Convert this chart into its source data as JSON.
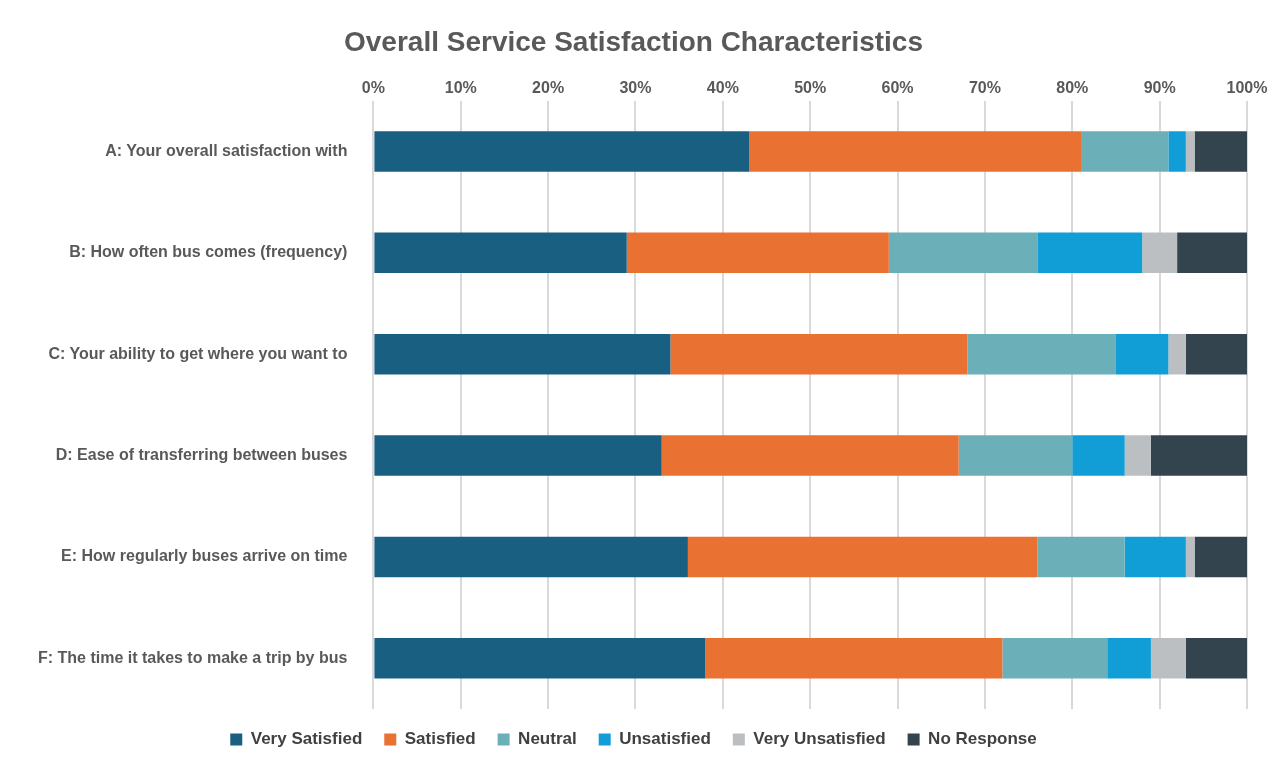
{
  "chart_data": {
    "type": "bar",
    "orientation": "horizontal",
    "stacked": true,
    "title": "Overall Service Satisfaction Characteristics",
    "categories": [
      "A: Your overall satisfaction with",
      "B: How often bus comes (frequency)",
      "C: Your ability to get where you want to",
      "D: Ease of transferring between buses",
      "E: How regularly buses arrive on time",
      "F: The time it takes to make a trip by bus"
    ],
    "series": [
      {
        "name": "Very Satisfied",
        "color": "#185f82",
        "values": [
          43,
          29,
          34,
          33,
          36,
          38
        ]
      },
      {
        "name": "Satisfied",
        "color": "#e97132",
        "values": [
          38,
          30,
          34,
          34,
          40,
          34
        ]
      },
      {
        "name": "Neutral",
        "color": "#6bb0b8",
        "values": [
          10,
          17,
          17,
          13,
          10,
          12
        ]
      },
      {
        "name": "Unsatisfied",
        "color": "#119ed6",
        "values": [
          2,
          12,
          6,
          6,
          7,
          5
        ]
      },
      {
        "name": "Very Unsatisfied",
        "color": "#bcbfc1",
        "values": [
          1,
          4,
          2,
          3,
          1,
          4
        ]
      },
      {
        "name": "No Response",
        "color": "#33444f",
        "values": [
          6,
          8,
          7,
          11,
          6,
          7
        ]
      }
    ],
    "xlim": [
      0,
      100
    ],
    "xticks": [
      {
        "value": 0,
        "label": "0%"
      },
      {
        "value": 10,
        "label": "10%"
      },
      {
        "value": 20,
        "label": "20%"
      },
      {
        "value": 30,
        "label": "30%"
      },
      {
        "value": 40,
        "label": "40%"
      },
      {
        "value": 50,
        "label": "50%"
      },
      {
        "value": 60,
        "label": "60%"
      },
      {
        "value": 70,
        "label": "70%"
      },
      {
        "value": 80,
        "label": "80%"
      },
      {
        "value": 90,
        "label": "90%"
      },
      {
        "value": 100,
        "label": "100%"
      }
    ],
    "grid": "x",
    "legend": "bottom"
  }
}
